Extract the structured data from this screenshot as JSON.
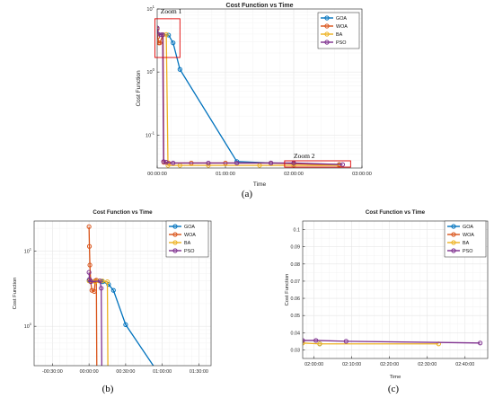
{
  "chart_data": [
    {
      "type": "line",
      "title": "Cost Function vs Time",
      "xlabel": "Time",
      "ylabel": "Cost Function",
      "y_scale": "log",
      "grid": true,
      "legend": "top-right",
      "x_ticks": [
        "00:00:00",
        "01:00:00",
        "02:00:00",
        "03:00:00"
      ],
      "y_ticks": [
        "10^-1",
        "10^0",
        "10^1"
      ],
      "xlim_minutes": [
        0,
        180
      ],
      "ylim": [
        0.03,
        10
      ],
      "panel_label": "(a)",
      "annotations": [
        "Zoom 1",
        "Zoom 2"
      ],
      "series": [
        {
          "name": "GOA",
          "color": "#0072BD",
          "points": [
            [
              0,
              4.1
            ],
            [
              10,
              3.85
            ],
            [
              14,
              2.9
            ],
            [
              20,
              1.1
            ],
            [
              70,
              0.038
            ],
            [
              100,
              0.036
            ],
            [
              160,
              0.034
            ]
          ]
        },
        {
          "name": "WOA",
          "color": "#D95319",
          "points": [
            [
              0,
              4.8
            ],
            [
              0.4,
              3.6
            ],
            [
              1.4,
              2.9
            ],
            [
              2.3,
              2.9
            ],
            [
              5.2,
              3.9
            ],
            [
              5.8,
              0.037
            ],
            [
              10,
              0.036
            ],
            [
              30,
              0.036
            ],
            [
              60,
              0.036
            ],
            [
              100,
              0.036
            ],
            [
              120,
              0.035
            ],
            [
              160,
              0.034
            ]
          ]
        },
        {
          "name": "BA",
          "color": "#EDB120",
          "points": [
            [
              0,
              4.0
            ],
            [
              5,
              3.9
            ],
            [
              8,
              3.95
            ],
            [
              9.5,
              0.033
            ],
            [
              20,
              0.033
            ],
            [
              45,
              0.033
            ],
            [
              90,
              0.033
            ],
            [
              120,
              0.033
            ],
            [
              160,
              0.033
            ]
          ]
        },
        {
          "name": "PSO",
          "color": "#7E2F8E",
          "points": [
            [
              0,
              5.0
            ],
            [
              0.8,
              4.0
            ],
            [
              3.5,
              3.9
            ],
            [
              4.8,
              3.9
            ],
            [
              5.6,
              0.038
            ],
            [
              8,
              0.037
            ],
            [
              14,
              0.036
            ],
            [
              45,
              0.036
            ],
            [
              70,
              0.036
            ],
            [
              100,
              0.036
            ],
            [
              120,
              0.036
            ],
            [
              163,
              0.034
            ]
          ]
        }
      ]
    },
    {
      "type": "line",
      "title": "Cost Function vs Time",
      "xlabel": "",
      "ylabel": "Cost Function",
      "y_scale": "log",
      "grid": true,
      "legend": "top-right",
      "x_ticks": [
        "-00:30:00",
        "00:00:00",
        "00:30:00",
        "01:00:00",
        "01:30:00"
      ],
      "y_ticks": [
        "10^0",
        "10^1"
      ],
      "xlim_minutes": [
        -45,
        100
      ],
      "ylim": [
        0.3,
        25
      ],
      "panel_label": "(b)",
      "series": [
        {
          "name": "GOA",
          "color": "#0072BD",
          "points": [
            [
              0,
              4.1
            ],
            [
              5,
              4.0
            ],
            [
              11,
              3.9
            ],
            [
              16,
              3.6
            ],
            [
              20,
              3.0
            ],
            [
              30,
              1.05
            ],
            [
              60,
              0.2
            ]
          ]
        },
        {
          "name": "WOA",
          "color": "#D95319",
          "points": [
            [
              0,
              21
            ],
            [
              0.3,
              11.5
            ],
            [
              0.7,
              6.5
            ],
            [
              1.3,
              4.0
            ],
            [
              2.3,
              3.0
            ],
            [
              4.3,
              2.9
            ],
            [
              5,
              4.0
            ],
            [
              6,
              4.1
            ],
            [
              6.4,
              0.2
            ]
          ]
        },
        {
          "name": "BA",
          "color": "#EDB120",
          "points": [
            [
              0,
              4.0
            ],
            [
              5,
              3.9
            ],
            [
              8,
              4.0
            ],
            [
              11,
              4.0
            ],
            [
              15,
              3.9
            ],
            [
              15.5,
              0.2
            ]
          ]
        },
        {
          "name": "PSO",
          "color": "#7E2F8E",
          "points": [
            [
              0,
              5.2
            ],
            [
              0.4,
              4.2
            ],
            [
              1.5,
              3.9
            ],
            [
              9,
              4.0
            ],
            [
              10,
              3.2
            ],
            [
              10.5,
              0.2
            ]
          ]
        }
      ]
    },
    {
      "type": "line",
      "title": "Cost Function vs Time",
      "xlabel": "Time",
      "ylabel": "Cost Function",
      "y_scale": "linear",
      "grid": true,
      "legend": "top-right",
      "x_ticks": [
        "02:00:00",
        "02:10:00",
        "02:20:00",
        "02:30:00",
        "02:40:00"
      ],
      "y_ticks": [
        "0.03",
        "0.04",
        "0.05",
        "0.06",
        "0.07",
        "0.08",
        "0.09",
        "0.1"
      ],
      "xlim_minutes": [
        117,
        166
      ],
      "ylim": [
        0.025,
        0.105
      ],
      "panel_label": "(c)",
      "series": [
        {
          "name": "GOA",
          "color": "#0072BD",
          "points": [
            [
              121.5,
              0.0335
            ]
          ]
        },
        {
          "name": "WOA",
          "color": "#D95319",
          "points": []
        },
        {
          "name": "BA",
          "color": "#EDB120",
          "points": [
            [
              117,
              0.034
            ],
            [
              121.5,
              0.0335
            ],
            [
              153,
              0.0335
            ]
          ]
        },
        {
          "name": "PSO",
          "color": "#7E2F8E",
          "points": [
            [
              117,
              0.0355
            ],
            [
              120.5,
              0.0355
            ],
            [
              128.5,
              0.035
            ],
            [
              164,
              0.034
            ]
          ]
        }
      ]
    }
  ]
}
